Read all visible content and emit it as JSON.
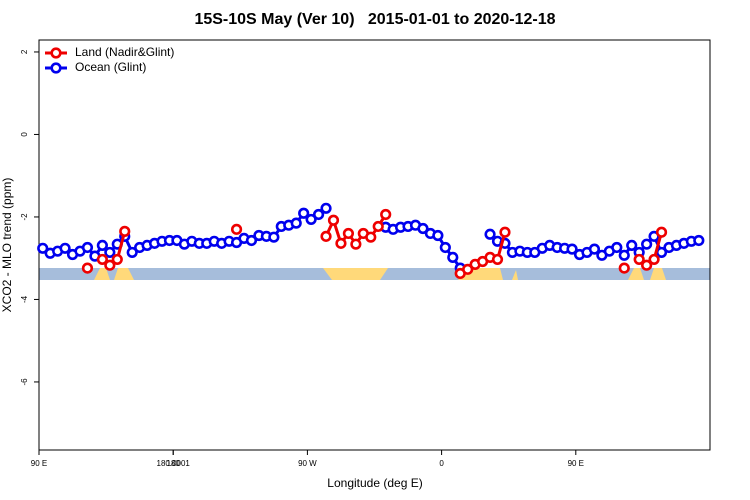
{
  "chart_data": {
    "type": "line",
    "title": "15S-10S May (Ver 10)   2015-01-01 to 2020-12-18",
    "x_label": "Longitude (deg E)",
    "y_label": "XCO2 - MLO trend (ppm)",
    "xlim": [
      90,
      540
    ],
    "xticks": [
      {
        "value": 90,
        "label": "90 E"
      },
      180,
      {
        "value": 270,
        "label": "90 W"
      },
      {
        "value": 360,
        "label": "0"
      },
      {
        "value": 450,
        "label": "90 E"
      },
      180.0001
    ],
    "ylim": [
      -7.65,
      2.29
    ],
    "yticks": [
      -6,
      -4,
      -2,
      0,
      2
    ],
    "legend": "top-left",
    "series": [
      {
        "name": "Land (Nadir&Glint)",
        "color": "#ee0000",
        "x": [
          122.5,
          127.5,
          132.5,
          137.5,
          142.5,
          147.5,
          152.5,
          222.5,
          227.5,
          282.5,
          287.5,
          292.5,
          297.5,
          302.5,
          307.5,
          312.5,
          317.5,
          322.5,
          327.5,
          372.5,
          377.5,
          382.5,
          387.5,
          392.5,
          397.5,
          402.5,
          407.5,
          482.5,
          487.5,
          492.5,
          497.5,
          502.5,
          507.5
        ],
        "values": [
          -3.24,
          null,
          -3.03,
          -3.17,
          -3.03,
          -2.35,
          null,
          -2.3,
          null,
          -2.47,
          -2.08,
          -2.64,
          -2.4,
          -2.66,
          -2.4,
          -2.49,
          -2.23,
          -1.94,
          null,
          -3.37,
          -3.27,
          -3.15,
          -3.08,
          -2.98,
          -3.03,
          -2.37,
          null,
          -3.24,
          null,
          -3.03,
          -3.17,
          -3.03,
          -2.37
        ]
      },
      {
        "name": "Ocean (Glint)",
        "color": "#0000ee",
        "x": [
          92.5,
          97.5,
          102.5,
          107.5,
          112.5,
          117.5,
          122.5,
          127.5,
          132.5,
          137.5,
          142.5,
          147.5,
          152.5,
          157.5,
          162.5,
          167.5,
          172.5,
          177.5,
          182.5,
          187.5,
          192.5,
          197.5,
          202.5,
          207.5,
          212.5,
          217.5,
          222.5,
          227.5,
          232.5,
          237.5,
          242.5,
          247.5,
          252.5,
          257.5,
          262.5,
          267.5,
          272.5,
          277.5,
          282.5,
          287.5,
          292.5,
          297.5,
          302.5,
          307.5,
          312.5,
          317.5,
          322.5,
          327.5,
          332.5,
          337.5,
          342.5,
          347.5,
          352.5,
          357.5,
          362.5,
          367.5,
          372.5,
          377.5,
          382.5,
          387.5,
          392.5,
          397.5,
          402.5,
          407.5,
          412.5,
          417.5,
          422.5,
          427.5,
          432.5,
          437.5,
          442.5,
          447.5,
          452.5,
          457.5,
          462.5,
          467.5,
          472.5,
          477.5,
          482.5,
          487.5,
          492.5,
          497.5,
          502.5,
          507.5,
          512.5,
          517.5,
          522.5,
          527.5,
          532.5
        ],
        "values": [
          -2.76,
          -2.88,
          -2.83,
          -2.76,
          -2.91,
          -2.83,
          -2.74,
          -2.95,
          -2.69,
          -2.86,
          -2.66,
          -2.47,
          -2.86,
          -2.74,
          -2.69,
          -2.64,
          -2.59,
          -2.57,
          -2.57,
          -2.66,
          -2.59,
          -2.64,
          -2.64,
          -2.59,
          -2.64,
          -2.59,
          -2.62,
          -2.52,
          -2.57,
          -2.45,
          -2.47,
          -2.49,
          -2.23,
          -2.2,
          -2.15,
          -1.91,
          -2.06,
          -1.94,
          -1.79,
          null,
          null,
          null,
          null,
          null,
          null,
          null,
          -2.25,
          -2.3,
          -2.25,
          -2.23,
          -2.2,
          -2.28,
          -2.4,
          -2.45,
          -2.74,
          -2.98,
          -3.24,
          null,
          null,
          null,
          -2.42,
          -2.59,
          -2.64,
          -2.86,
          -2.83,
          -2.86,
          -2.86,
          -2.76,
          -2.69,
          -2.74,
          -2.76,
          -2.78,
          -2.91,
          -2.86,
          -2.78,
          -2.93,
          -2.83,
          -2.74,
          -2.93,
          -2.69,
          -2.86,
          -2.66,
          -2.47,
          -2.86,
          -2.74,
          -2.69,
          -2.64,
          -2.59,
          -2.57
        ]
      }
    ]
  }
}
